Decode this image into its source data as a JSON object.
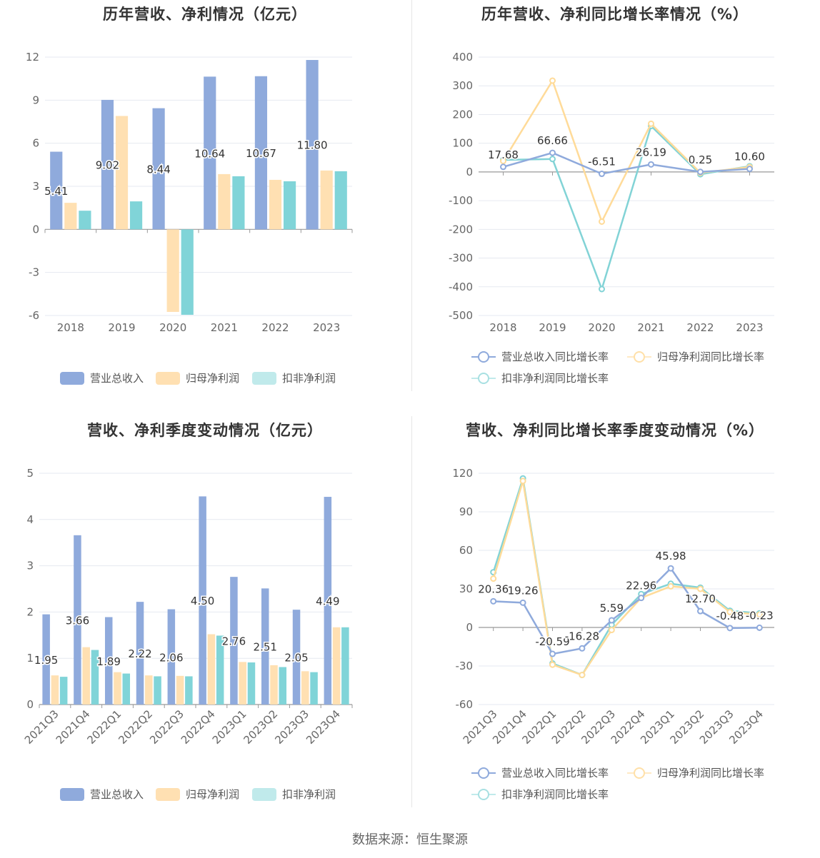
{
  "source": "数据来源：恒生聚源",
  "colors": {
    "revenue": "#8faadc",
    "parent_net": "#ffe0b2",
    "deducted_net": "#80d4d8",
    "revenue_line": "#8faadc",
    "parent_line": "#ffdb99",
    "deducted_line": "#82d3d6"
  },
  "legend_bar": [
    "营业总收入",
    "归母净利润",
    "扣非净利润"
  ],
  "legend_line": [
    "营业总收入同比增长率",
    "归母净利润同比增长率",
    "扣非净利润同比增长率"
  ],
  "chart_data": [
    {
      "type": "bar",
      "title": "历年营收、净利情况（亿元）",
      "categories": [
        "2018",
        "2019",
        "2020",
        "2021",
        "2022",
        "2023"
      ],
      "ylim": [
        -6,
        12
      ],
      "yticks": [
        -6,
        -3,
        0,
        3,
        6,
        9,
        12
      ],
      "series": [
        {
          "name": "营业总收入",
          "values": [
            5.41,
            9.02,
            8.44,
            10.64,
            10.67,
            11.8
          ],
          "labels": [
            "5.41",
            "9.02",
            "8.44",
            "10.64",
            "10.67",
            "11.80"
          ]
        },
        {
          "name": "归母净利润",
          "values": [
            1.85,
            7.9,
            -5.75,
            3.85,
            3.45,
            4.1
          ]
        },
        {
          "name": "扣非净利润",
          "values": [
            1.3,
            1.95,
            -5.95,
            3.7,
            3.35,
            4.05
          ]
        }
      ],
      "legend": "bottom"
    },
    {
      "type": "line",
      "title": "历年营收、净利同比增长率情况（%）",
      "categories": [
        "2018",
        "2019",
        "2020",
        "2021",
        "2022",
        "2023"
      ],
      "ylim": [
        -500,
        400
      ],
      "yticks": [
        -500,
        -400,
        -300,
        -200,
        -100,
        0,
        100,
        200,
        300,
        400
      ],
      "series": [
        {
          "name": "营业总收入同比增长率",
          "values": [
            17.68,
            66.66,
            -6.51,
            26.19,
            0.25,
            10.6
          ],
          "labels": [
            "17.68",
            "66.66",
            "-6.51",
            "26.19",
            "0.25",
            "10.60"
          ]
        },
        {
          "name": "归母净利润同比增长率",
          "values": [
            38,
            318,
            -173,
            168,
            -3,
            17
          ]
        },
        {
          "name": "扣非净利润同比增长率",
          "values": [
            42,
            45,
            -408,
            160,
            -8,
            20
          ]
        }
      ],
      "legend": "bottom"
    },
    {
      "type": "bar",
      "title": "营收、净利季度变动情况（亿元）",
      "categories": [
        "2021Q3",
        "2021Q4",
        "2022Q1",
        "2022Q2",
        "2022Q3",
        "2022Q4",
        "2023Q1",
        "2023Q2",
        "2023Q3",
        "2023Q4"
      ],
      "ylim": [
        0,
        5
      ],
      "yticks": [
        0,
        1,
        2,
        3,
        4,
        5
      ],
      "series": [
        {
          "name": "营业总收入",
          "values": [
            1.95,
            3.66,
            1.89,
            2.22,
            2.06,
            4.5,
            2.76,
            2.51,
            2.05,
            4.49
          ],
          "labels": [
            "1.95",
            "3.66",
            "1.89",
            "2.22",
            "2.06",
            "4.50",
            "2.76",
            "2.51",
            "2.05",
            "4.49"
          ]
        },
        {
          "name": "归母净利润",
          "values": [
            0.63,
            1.24,
            0.7,
            0.63,
            0.62,
            1.52,
            0.92,
            0.85,
            0.72,
            1.67
          ]
        },
        {
          "name": "扣非净利润",
          "values": [
            0.6,
            1.18,
            0.67,
            0.61,
            0.61,
            1.49,
            0.91,
            0.81,
            0.7,
            1.67
          ]
        }
      ],
      "legend": "bottom"
    },
    {
      "type": "line",
      "title": "营收、净利同比增长率季度变动情况（%）",
      "categories": [
        "2021Q3",
        "2021Q4",
        "2022Q1",
        "2022Q2",
        "2022Q3",
        "2022Q4",
        "2023Q1",
        "2023Q2",
        "2023Q3",
        "2023Q4"
      ],
      "ylim": [
        -60,
        120
      ],
      "yticks": [
        -60,
        -30,
        0,
        30,
        60,
        90,
        120
      ],
      "series": [
        {
          "name": "营业总收入同比增长率",
          "values": [
            20.36,
            19.26,
            -20.59,
            -16.28,
            5.59,
            22.96,
            45.98,
            12.7,
            -0.48,
            -0.23
          ],
          "labels": [
            "20.36",
            "19.26",
            "-20.59",
            "-16.28",
            "5.59",
            "22.96",
            "45.98",
            "12.70",
            "-0.48",
            "-0.23"
          ]
        },
        {
          "name": "归母净利润同比增长率",
          "values": [
            38,
            114,
            -29,
            -37,
            -2,
            23,
            32,
            30,
            12,
            10
          ]
        },
        {
          "name": "扣非净利润同比增长率",
          "values": [
            43,
            116,
            -28,
            -37,
            2,
            26,
            34,
            31,
            13,
            11
          ]
        }
      ],
      "legend": "bottom"
    }
  ]
}
